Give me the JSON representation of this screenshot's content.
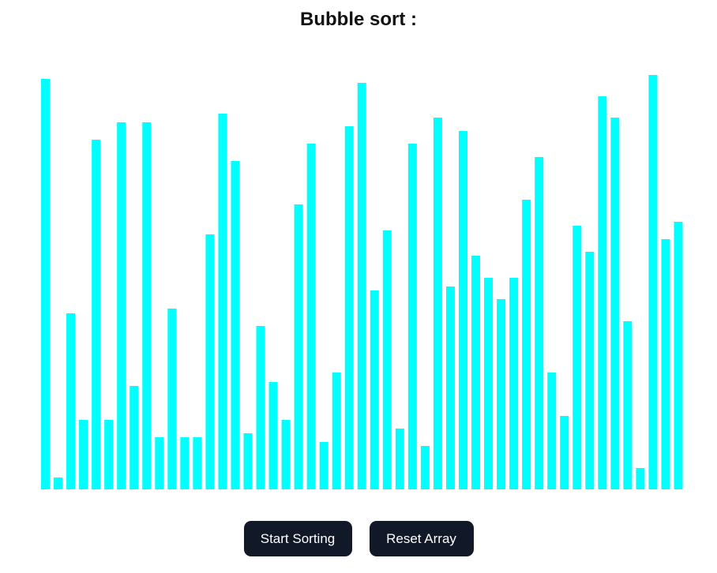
{
  "page": {
    "title": "Bubble sort :"
  },
  "controls": {
    "start_label": "Start Sorting",
    "reset_label": "Reset Array"
  },
  "colors": {
    "bar": "#00ffff",
    "button_bg": "#111827",
    "button_text": "#ffffff",
    "title_text": "#111111"
  },
  "chart_data": {
    "type": "bar",
    "values": [
      520,
      15,
      223,
      88,
      443,
      88,
      465,
      131,
      465,
      66,
      229,
      66,
      66,
      323,
      476,
      416,
      71,
      207,
      136,
      88,
      361,
      438,
      60,
      148,
      460,
      515,
      252,
      328,
      77,
      438,
      55,
      471,
      257,
      454,
      296,
      268,
      241,
      268,
      367,
      421,
      148,
      93,
      334,
      301,
      498,
      471,
      213,
      27,
      525,
      317,
      339
    ]
  }
}
